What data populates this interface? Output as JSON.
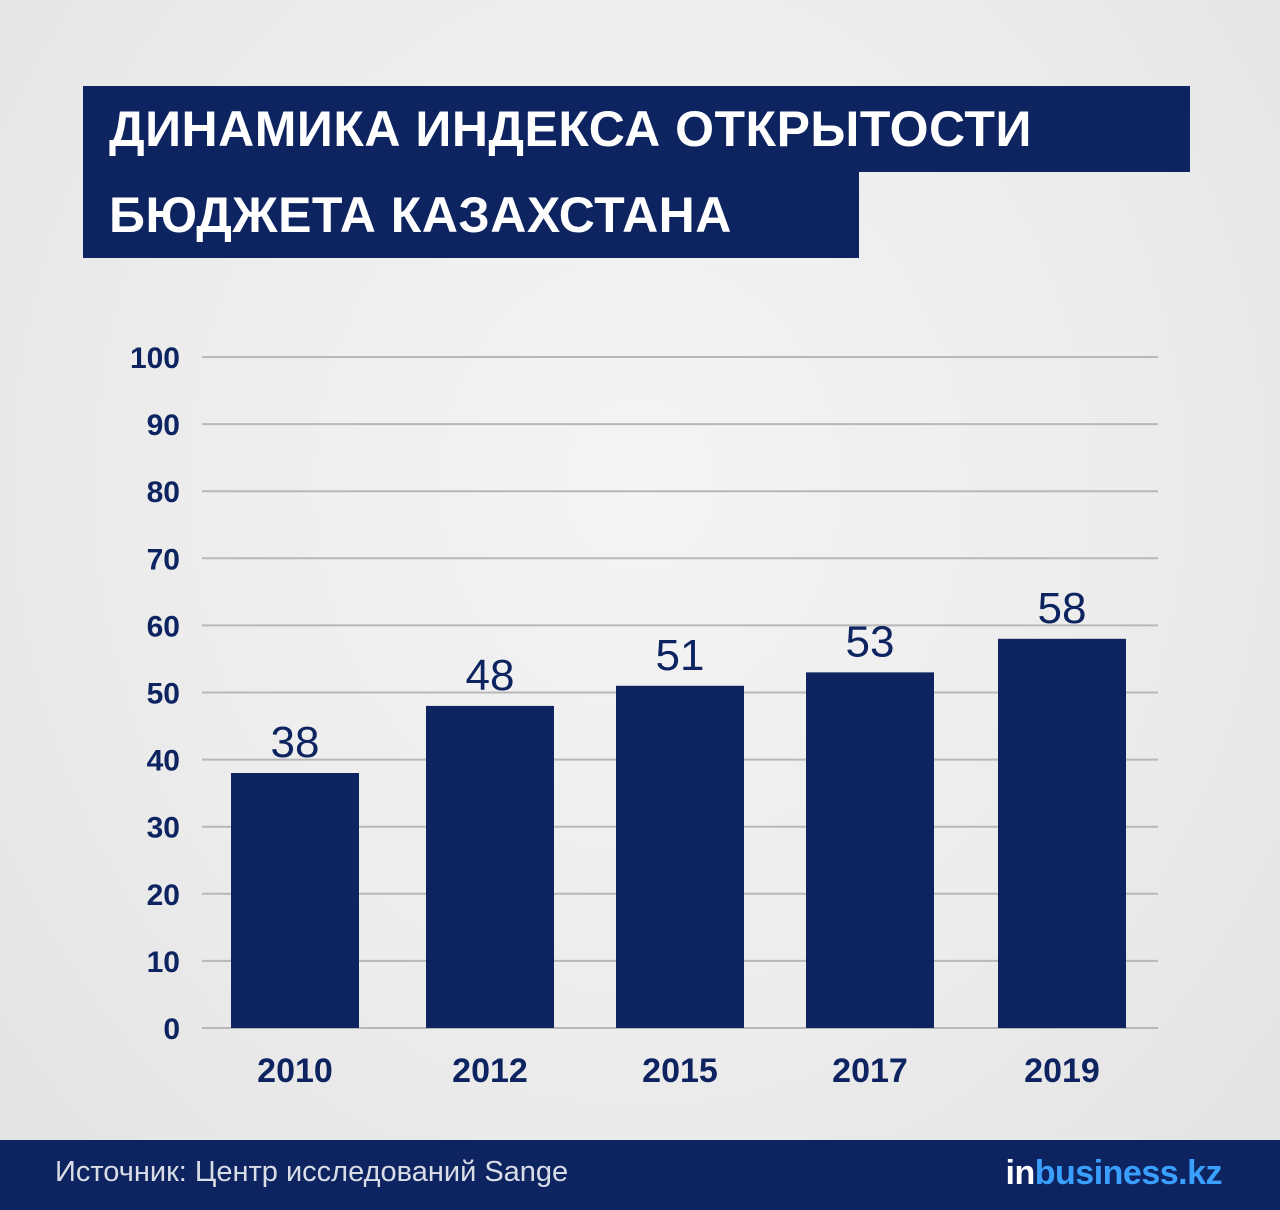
{
  "title_line1": "ДИНАМИКА ИНДЕКСА ОТКРЫТОСТИ",
  "title_line2": "БЮДЖЕТА КАЗАХСТАНА",
  "footer": {
    "source": "Источник: Центр исследований Sange",
    "logo_in": "in",
    "logo_rest": "business.kz"
  },
  "colors": {
    "navy": "#0d2461",
    "logo_blue": "#3aa0ff",
    "grid": "#b8b8b8"
  },
  "chart_data": {
    "type": "bar",
    "title": "ДИНАМИКА ИНДЕКСА ОТКРЫТОСТИ БЮДЖЕТА КАЗАХСТАНА",
    "categories": [
      "2010",
      "2012",
      "2015",
      "2017",
      "2019"
    ],
    "values": [
      38,
      48,
      51,
      53,
      58
    ],
    "ylim": [
      0,
      100
    ],
    "yticks": [
      0,
      10,
      20,
      30,
      40,
      50,
      60,
      70,
      80,
      90,
      100
    ],
    "grid": true,
    "data_labels": true,
    "xlabel": "",
    "ylabel": ""
  }
}
